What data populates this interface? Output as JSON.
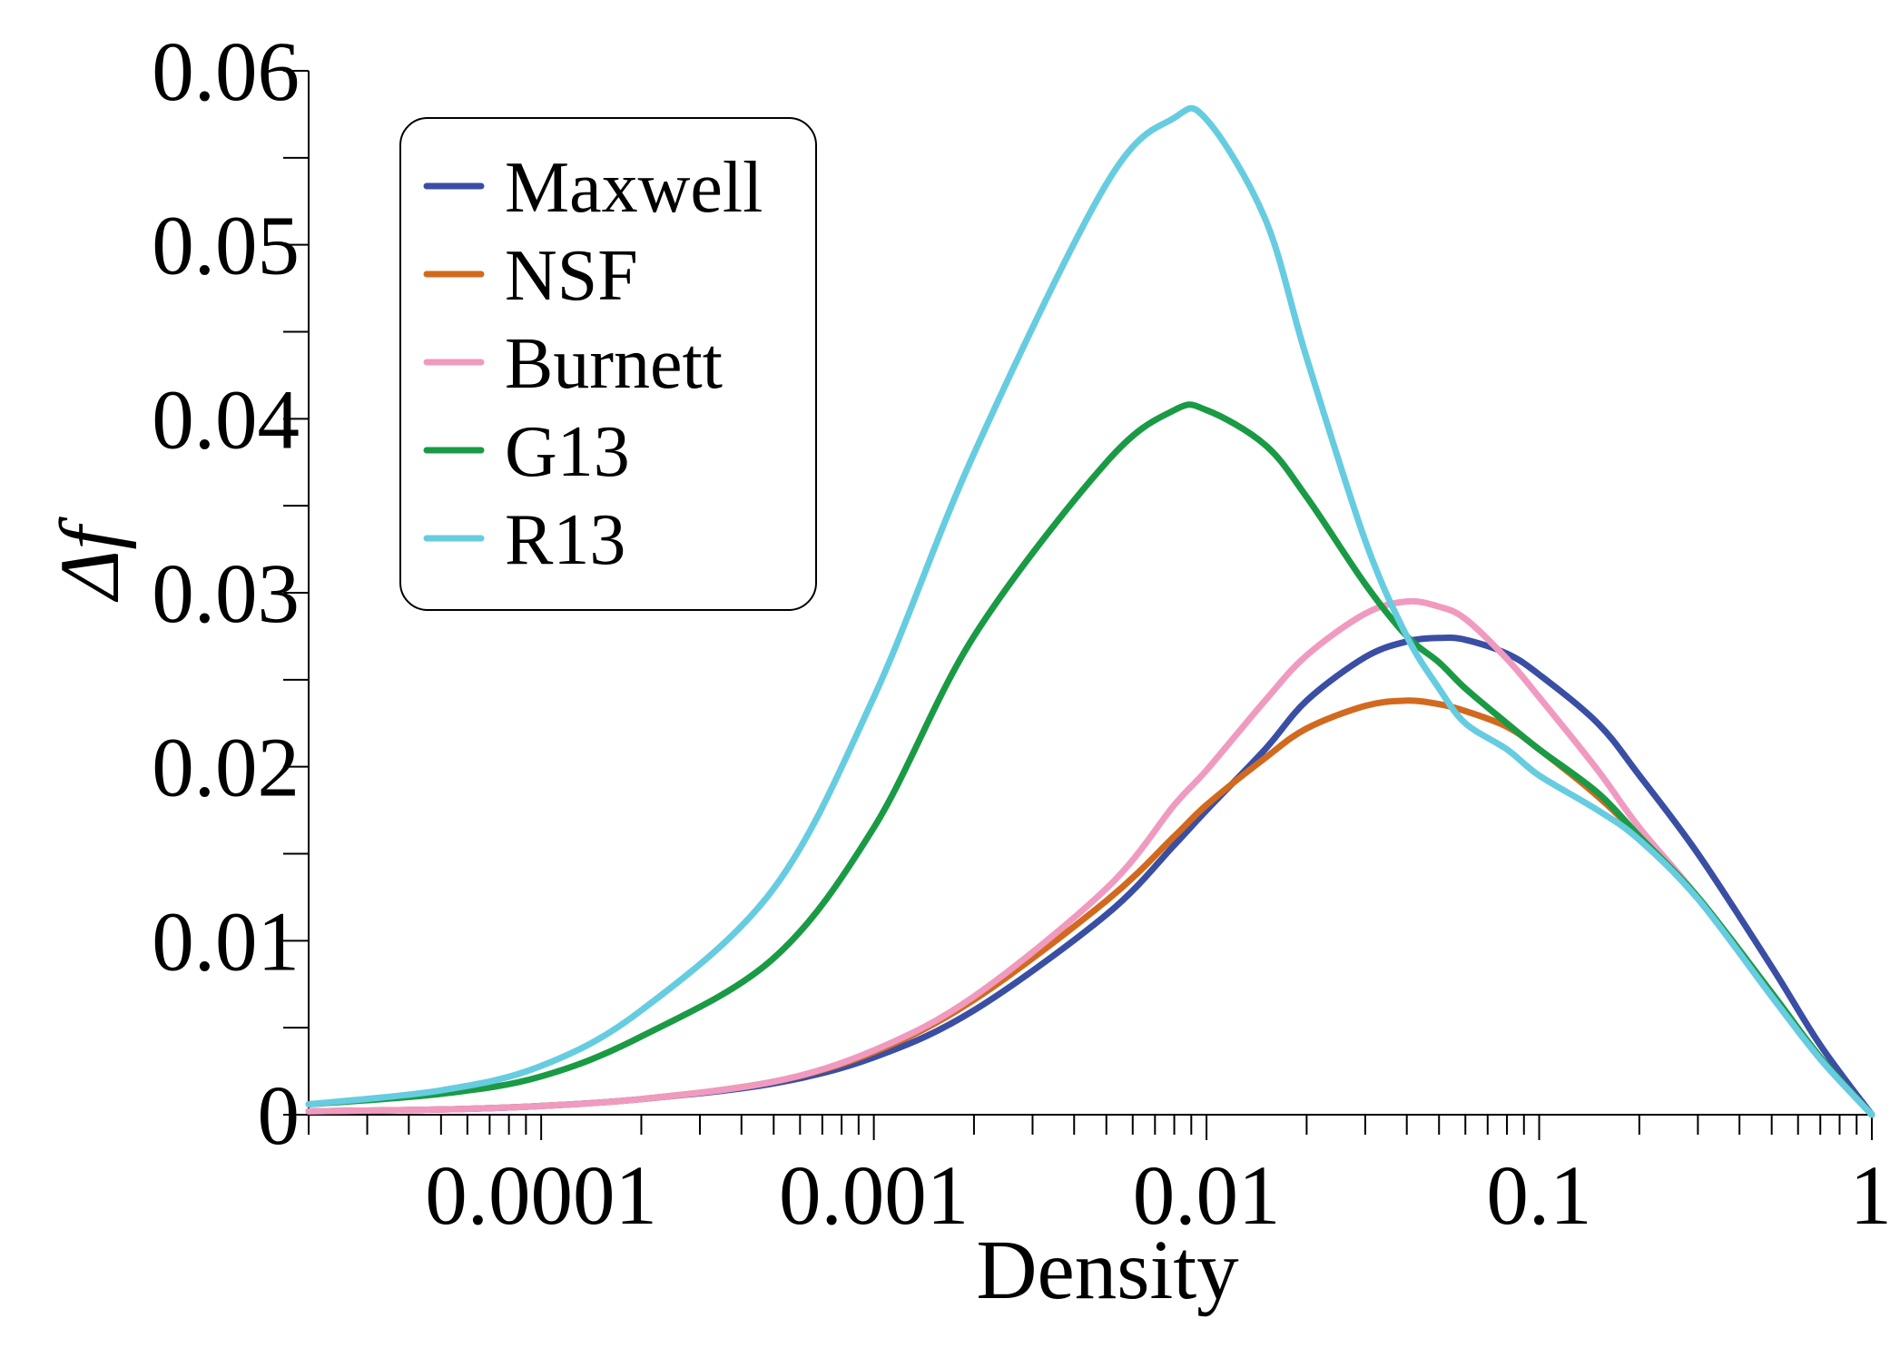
{
  "chart_data": {
    "type": "line",
    "title": "",
    "xlabel": "Density",
    "ylabel": "Δf",
    "xscale": "log",
    "xlim": [
      2e-05,
      1
    ],
    "ylim": [
      0,
      0.06
    ],
    "grid": false,
    "legend_position": "top-left",
    "x_ticks": [
      {
        "value": 0.0001,
        "label": "0.0001"
      },
      {
        "value": 0.001,
        "label": "0.001"
      },
      {
        "value": 0.01,
        "label": "0.01"
      },
      {
        "value": 0.1,
        "label": "0.1"
      },
      {
        "value": 1,
        "label": "1"
      }
    ],
    "y_ticks": [
      {
        "value": 0,
        "label": "0"
      },
      {
        "value": 0.01,
        "label": "0.01"
      },
      {
        "value": 0.02,
        "label": "0.02"
      },
      {
        "value": 0.03,
        "label": "0.03"
      },
      {
        "value": 0.04,
        "label": "0.04"
      },
      {
        "value": 0.05,
        "label": "0.05"
      },
      {
        "value": 0.06,
        "label": "0.06"
      }
    ],
    "y_minor_step": 0.005,
    "x": [
      2e-05,
      5e-05,
      0.0001,
      0.0002,
      0.0005,
      0.001,
      0.002,
      0.005,
      0.008,
      0.01,
      0.015,
      0.02,
      0.03,
      0.04,
      0.05,
      0.06,
      0.08,
      0.1,
      0.15,
      0.2,
      0.3,
      0.5,
      0.7,
      1
    ],
    "series": [
      {
        "name": "Maxwell",
        "color": "#3a4ea4",
        "values": [
          0.0002,
          0.0003,
          0.0005,
          0.0009,
          0.0018,
          0.0033,
          0.006,
          0.0115,
          0.0155,
          0.0175,
          0.021,
          0.0238,
          0.0263,
          0.0272,
          0.0274,
          0.0273,
          0.0265,
          0.0253,
          0.0225,
          0.0195,
          0.015,
          0.0085,
          0.004,
          0.0
        ]
      },
      {
        "name": "NSF",
        "color": "#d2691e",
        "values": [
          0.0002,
          0.0003,
          0.0005,
          0.0009,
          0.0019,
          0.0036,
          0.0066,
          0.0123,
          0.016,
          0.0178,
          0.0205,
          0.0222,
          0.0235,
          0.0238,
          0.0236,
          0.0232,
          0.0223,
          0.021,
          0.0183,
          0.016,
          0.0125,
          0.007,
          0.0033,
          0.0
        ]
      },
      {
        "name": "Burnett",
        "color": "#f09ac0",
        "values": [
          0.0002,
          0.0003,
          0.0005,
          0.0009,
          0.0019,
          0.0037,
          0.0068,
          0.013,
          0.0178,
          0.0198,
          0.0238,
          0.0264,
          0.0288,
          0.0295,
          0.0292,
          0.0285,
          0.0262,
          0.024,
          0.0198,
          0.0165,
          0.0125,
          0.0068,
          0.0032,
          0.0
        ]
      },
      {
        "name": "G13",
        "color": "#1a9a44",
        "values": [
          0.0006,
          0.0012,
          0.0022,
          0.0045,
          0.009,
          0.0165,
          0.0275,
          0.0375,
          0.0405,
          0.0405,
          0.0385,
          0.0355,
          0.0305,
          0.0275,
          0.026,
          0.0245,
          0.0225,
          0.021,
          0.0185,
          0.016,
          0.0125,
          0.007,
          0.0033,
          0.0
        ]
      },
      {
        "name": "R13",
        "color": "#66cce0",
        "values": [
          0.0006,
          0.0014,
          0.0028,
          0.006,
          0.013,
          0.024,
          0.038,
          0.0535,
          0.0573,
          0.0572,
          0.0515,
          0.0435,
          0.033,
          0.0275,
          0.0245,
          0.0225,
          0.021,
          0.0195,
          0.0175,
          0.0158,
          0.0124,
          0.0068,
          0.0032,
          0.0
        ]
      }
    ]
  }
}
